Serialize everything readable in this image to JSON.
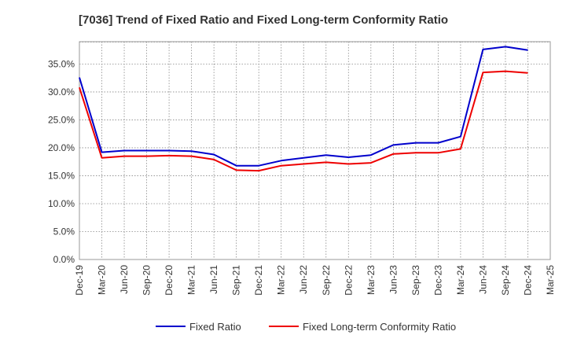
{
  "chart_data": {
    "type": "line",
    "title": "[7036]  Trend of Fixed Ratio and Fixed Long-term Conformity Ratio",
    "xlabel": "",
    "ylabel": "",
    "x": [
      "Dec-19",
      "Mar-20",
      "Jun-20",
      "Sep-20",
      "Dec-20",
      "Mar-21",
      "Jun-21",
      "Sep-21",
      "Dec-21",
      "Mar-22",
      "Jun-22",
      "Sep-22",
      "Dec-22",
      "Mar-23",
      "Jun-23",
      "Sep-23",
      "Dec-23",
      "Mar-24",
      "Jun-24",
      "Sep-24",
      "Dec-24",
      "Mar-25"
    ],
    "ylim": [
      0,
      39
    ],
    "yticks": [
      {
        "value": 0,
        "label": "0.0%"
      },
      {
        "value": 5,
        "label": "5.0%"
      },
      {
        "value": 10,
        "label": "10.0%"
      },
      {
        "value": 15,
        "label": "15.0%"
      },
      {
        "value": 20,
        "label": "20.0%"
      },
      {
        "value": 25,
        "label": "25.0%"
      },
      {
        "value": 30,
        "label": "30.0%"
      },
      {
        "value": 35,
        "label": "35.0%"
      }
    ],
    "grid": true,
    "legend_position": "bottom",
    "series": [
      {
        "name": "Fixed Ratio",
        "color": "#0000cc",
        "values": [
          32.6,
          19.2,
          19.5,
          19.5,
          19.5,
          19.4,
          18.8,
          16.8,
          16.8,
          17.7,
          18.2,
          18.7,
          18.3,
          18.7,
          20.5,
          20.9,
          20.9,
          22.0,
          37.6,
          38.1,
          37.5,
          null
        ]
      },
      {
        "name": "Fixed Long-term Conformity Ratio",
        "color": "#ee0000",
        "values": [
          30.8,
          18.2,
          18.5,
          18.5,
          18.6,
          18.5,
          17.9,
          16.0,
          15.9,
          16.8,
          17.1,
          17.4,
          17.1,
          17.3,
          18.9,
          19.1,
          19.1,
          19.8,
          33.5,
          33.7,
          33.4,
          null
        ]
      }
    ]
  }
}
